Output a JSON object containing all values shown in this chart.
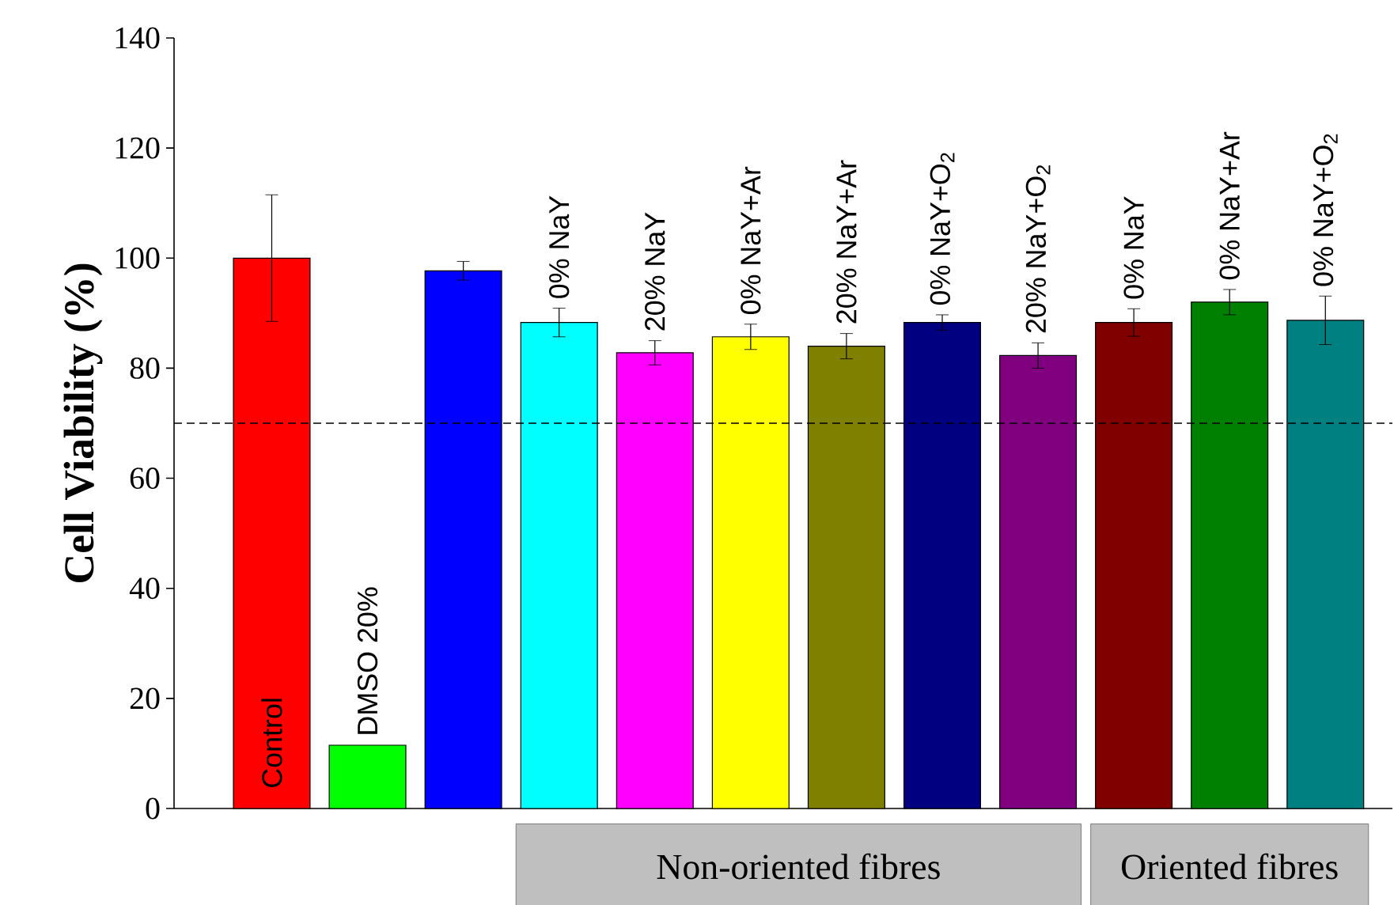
{
  "chart_data": {
    "type": "bar",
    "ylabel": "Cell Viability (%)",
    "categories": [
      "Control",
      "DMSO 20%",
      null,
      "0% NaY",
      "20% NaY",
      "0% NaY+Ar",
      "20% NaY+Ar",
      "0% NaY+O$_{2}$",
      "20% NaY+O$_{2}$",
      "0% NaY",
      "0% NaY+Ar",
      "0% NaY+O$_{2}$"
    ],
    "values": [
      100,
      11.5,
      97.7,
      88.3,
      82.8,
      85.7,
      84,
      88.3,
      82.3,
      88.3,
      92,
      88.7
    ],
    "errors": [
      11.5,
      null,
      1.7,
      2.6,
      2.2,
      2.3,
      2.3,
      1.4,
      2.3,
      2.5,
      2.3,
      4.4
    ],
    "colors": [
      "#ff0000",
      "#00ff00",
      "#0000ff",
      "#00ffff",
      "#ff00ff",
      "#ffff00",
      "#808000",
      "#000080",
      "#800080",
      "#800000",
      "#008000",
      "#008080"
    ],
    "ylim": [
      0,
      140
    ],
    "yticks": [
      0,
      20,
      40,
      60,
      80,
      100,
      120,
      140
    ],
    "ref_lines": [
      {
        "axis": "y",
        "value": 70,
        "line_style": "dashed",
        "color": "#000000"
      }
    ],
    "annotations": [
      "Non-oriented fibres",
      "Oriented fibres"
    ]
  }
}
